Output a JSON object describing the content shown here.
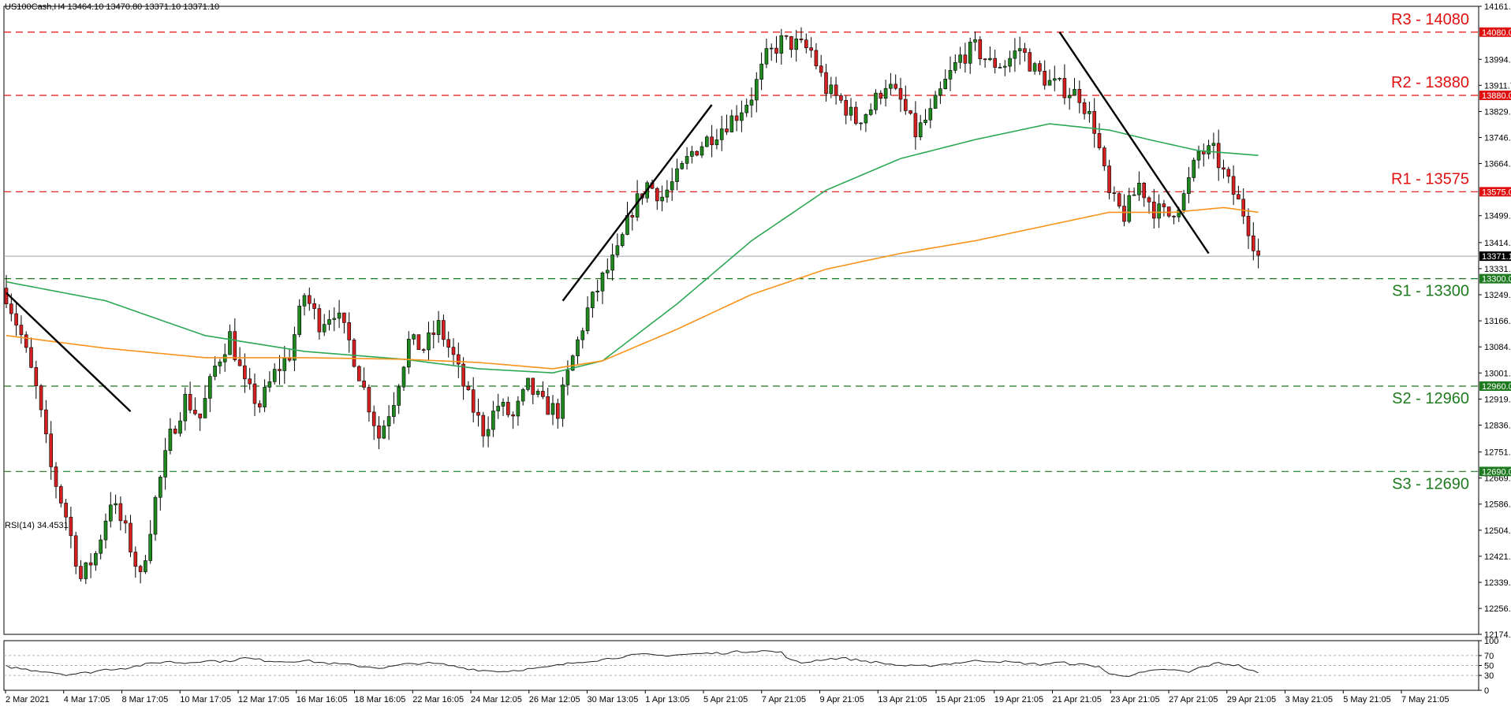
{
  "chart_data": [
    {
      "type": "candlestick",
      "header": "US100Cash,H4  13464.10 13470.80 13371.10 13371.10",
      "ylim": [
        12174.7,
        14161.7
      ],
      "y_ticks": [
        "14161.70",
        "14080.00",
        "13994.00",
        "13911.70",
        "13880.00",
        "13829.00",
        "13746.70",
        "13664.20",
        "13575.00",
        "13499.20",
        "13414.20",
        "13371.10",
        "13331.70",
        "13300.00",
        "13249.20",
        "13166.70",
        "13084.20",
        "13001.70",
        "12960.00",
        "12919.20",
        "12836.70",
        "12751.70",
        "12690.00",
        "12669.20",
        "12586.70",
        "12504.20",
        "12421.70",
        "12339.20",
        "12256.70",
        "12174.70"
      ],
      "x_ticks": [
        "2 Mar 2021",
        "4 Mar 17:05",
        "8 Mar 17:05",
        "10 Mar 17:05",
        "12 Mar 17:05",
        "16 Mar 16:05",
        "18 Mar 16:05",
        "22 Mar 16:05",
        "24 Mar 12:05",
        "26 Mar 12:05",
        "30 Mar 13:05",
        "1 Apr 13:05",
        "5 Apr 21:05",
        "7 Apr 21:05",
        "9 Apr 21:05",
        "13 Apr 21:05",
        "15 Apr 21:05",
        "19 Apr 21:05",
        "21 Apr 21:05",
        "23 Apr 21:05",
        "27 Apr 21:05",
        "29 Apr 21:05",
        "3 May 21:05",
        "5 May 21:05",
        "7 May 21:05"
      ],
      "levels": [
        {
          "label": "R3 - 14080",
          "value": 14080,
          "tag": "14080.00",
          "color": "#e01010"
        },
        {
          "label": "R2 - 13880",
          "value": 13880,
          "tag": "13880.00",
          "color": "#e01010"
        },
        {
          "label": "R1 - 13575",
          "value": 13575,
          "tag": "13575.00",
          "color": "#e01010"
        },
        {
          "label": "S1 - 13300",
          "value": 13300,
          "tag": "13300.00",
          "color": "#1e7a1e"
        },
        {
          "label": "S2 - 12960",
          "value": 12960,
          "tag": "12960.00",
          "color": "#1e7a1e"
        },
        {
          "label": "S3 - 12690",
          "value": 12690,
          "tag": "12690.00",
          "color": "#1e7a1e"
        }
      ],
      "current_price": {
        "value": 13371.1,
        "tag": "13371.10"
      },
      "close_path": [
        [
          0,
          13250
        ],
        [
          3,
          13120
        ],
        [
          6,
          12950
        ],
        [
          9,
          12700
        ],
        [
          12,
          12550
        ],
        [
          15,
          12350
        ],
        [
          18,
          12430
        ],
        [
          21,
          12600
        ],
        [
          24,
          12500
        ],
        [
          27,
          12350
        ],
        [
          30,
          12600
        ],
        [
          33,
          12800
        ],
        [
          36,
          12920
        ],
        [
          39,
          12860
        ],
        [
          42,
          13020
        ],
        [
          45,
          13120
        ],
        [
          48,
          12960
        ],
        [
          51,
          12900
        ],
        [
          54,
          13000
        ],
        [
          57,
          13060
        ],
        [
          60,
          13250
        ],
        [
          63,
          13160
        ],
        [
          66,
          13200
        ],
        [
          69,
          13100
        ],
        [
          72,
          12950
        ],
        [
          75,
          12800
        ],
        [
          78,
          12920
        ],
        [
          81,
          13100
        ],
        [
          84,
          13080
        ],
        [
          87,
          13150
        ],
        [
          90,
          13050
        ],
        [
          93,
          12920
        ],
        [
          96,
          12820
        ],
        [
          99,
          12900
        ],
        [
          102,
          12860
        ],
        [
          105,
          12960
        ],
        [
          108,
          12900
        ],
        [
          111,
          12880
        ],
        [
          114,
          13050
        ],
        [
          117,
          13200
        ],
        [
          120,
          13300
        ],
        [
          123,
          13380
        ],
        [
          126,
          13520
        ],
        [
          129,
          13600
        ],
        [
          132,
          13560
        ],
        [
          135,
          13620
        ],
        [
          138,
          13700
        ],
        [
          141,
          13740
        ],
        [
          144,
          13780
        ],
        [
          147,
          13820
        ],
        [
          150,
          13880
        ],
        [
          153,
          14000
        ],
        [
          156,
          14050
        ],
        [
          159,
          14040
        ],
        [
          162,
          14020
        ],
        [
          165,
          13900
        ],
        [
          168,
          13860
        ],
        [
          171,
          13800
        ],
        [
          174,
          13840
        ],
        [
          177,
          13920
        ],
        [
          180,
          13860
        ],
        [
          183,
          13760
        ],
        [
          186,
          13820
        ],
        [
          189,
          13920
        ],
        [
          192,
          14000
        ],
        [
          195,
          14030
        ],
        [
          198,
          13980
        ],
        [
          201,
          13980
        ],
        [
          204,
          14030
        ],
        [
          207,
          13960
        ],
        [
          210,
          13920
        ],
        [
          213,
          13900
        ],
        [
          216,
          13880
        ],
        [
          219,
          13780
        ],
        [
          222,
          13560
        ],
        [
          225,
          13500
        ],
        [
          228,
          13600
        ],
        [
          231,
          13520
        ],
        [
          234,
          13500
        ],
        [
          237,
          13560
        ],
        [
          240,
          13700
        ],
        [
          243,
          13700
        ],
        [
          246,
          13600
        ],
        [
          249,
          13510
        ],
        [
          252,
          13371
        ]
      ],
      "series": [
        {
          "values": [
            [
              0,
              13290
            ],
            [
              20,
              13230
            ],
            [
              40,
              13120
            ],
            [
              60,
              13070
            ],
            [
              80,
              13045
            ],
            [
              95,
              13015
            ],
            [
              110,
              13002
            ],
            [
              120,
              13040
            ],
            [
              135,
              13220
            ],
            [
              150,
              13420
            ],
            [
              165,
              13580
            ],
            [
              180,
              13680
            ],
            [
              195,
              13740
            ],
            [
              210,
              13790
            ],
            [
              222,
              13770
            ],
            [
              230,
              13740
            ],
            [
              240,
              13705
            ],
            [
              252,
              13690
            ]
          ],
          "color": "#2ca855"
        },
        {
          "values": [
            [
              0,
              13120
            ],
            [
              20,
              13080
            ],
            [
              40,
              13050
            ],
            [
              60,
              13050
            ],
            [
              80,
              13045
            ],
            [
              95,
              13035
            ],
            [
              110,
              13015
            ],
            [
              120,
              13040
            ],
            [
              135,
              13140
            ],
            [
              150,
              13250
            ],
            [
              165,
              13330
            ],
            [
              180,
              13380
            ],
            [
              195,
              13420
            ],
            [
              210,
              13470
            ],
            [
              222,
              13510
            ],
            [
              235,
              13510
            ],
            [
              245,
              13525
            ],
            [
              252,
              13510
            ]
          ],
          "color": "#f7931a"
        }
      ],
      "trendlines": [
        {
          "from": [
            0,
            13255
          ],
          "to": [
            25,
            12880
          ],
          "color": "#000000"
        },
        {
          "from": [
            112,
            13230
          ],
          "to": [
            142,
            13850
          ],
          "color": "#000000"
        },
        {
          "from": [
            212,
            14080
          ],
          "to": [
            242,
            13380
          ],
          "color": "#000000"
        }
      ],
      "colors": {
        "up": "#1e8a1e",
        "down": "#d42020",
        "wick": "#000000"
      }
    },
    {
      "type": "line",
      "header": "RSI(14) 34.4531",
      "ylim": [
        0,
        100
      ],
      "y_ticks": [
        "100",
        "70",
        "50",
        "30",
        "0"
      ],
      "levels": [
        70,
        50,
        30
      ],
      "values": [
        [
          0,
          48
        ],
        [
          4,
          42
        ],
        [
          8,
          38
        ],
        [
          12,
          32
        ],
        [
          16,
          35
        ],
        [
          20,
          42
        ],
        [
          24,
          45
        ],
        [
          28,
          52
        ],
        [
          32,
          58
        ],
        [
          36,
          55
        ],
        [
          40,
          60
        ],
        [
          44,
          58
        ],
        [
          48,
          65
        ],
        [
          52,
          60
        ],
        [
          56,
          58
        ],
        [
          60,
          60
        ],
        [
          64,
          55
        ],
        [
          68,
          52
        ],
        [
          72,
          48
        ],
        [
          76,
          45
        ],
        [
          80,
          52
        ],
        [
          84,
          55
        ],
        [
          88,
          52
        ],
        [
          92,
          45
        ],
        [
          96,
          40
        ],
        [
          100,
          38
        ],
        [
          104,
          42
        ],
        [
          108,
          45
        ],
        [
          112,
          52
        ],
        [
          116,
          58
        ],
        [
          120,
          62
        ],
        [
          124,
          68
        ],
        [
          128,
          72
        ],
        [
          132,
          70
        ],
        [
          136,
          72
        ],
        [
          140,
          74
        ],
        [
          144,
          75
        ],
        [
          148,
          78
        ],
        [
          152,
          80
        ],
        [
          156,
          76
        ],
        [
          158,
          60
        ],
        [
          160,
          55
        ],
        [
          164,
          62
        ],
        [
          168,
          65
        ],
        [
          172,
          60
        ],
        [
          176,
          55
        ],
        [
          180,
          50
        ],
        [
          184,
          48
        ],
        [
          188,
          52
        ],
        [
          192,
          56
        ],
        [
          196,
          60
        ],
        [
          200,
          58
        ],
        [
          204,
          55
        ],
        [
          208,
          52
        ],
        [
          212,
          56
        ],
        [
          216,
          52
        ],
        [
          220,
          48
        ],
        [
          222,
          32
        ],
        [
          226,
          30
        ],
        [
          230,
          38
        ],
        [
          234,
          42
        ],
        [
          238,
          36
        ],
        [
          240,
          45
        ],
        [
          244,
          55
        ],
        [
          248,
          50
        ],
        [
          252,
          34
        ]
      ],
      "color": "#222222"
    }
  ]
}
